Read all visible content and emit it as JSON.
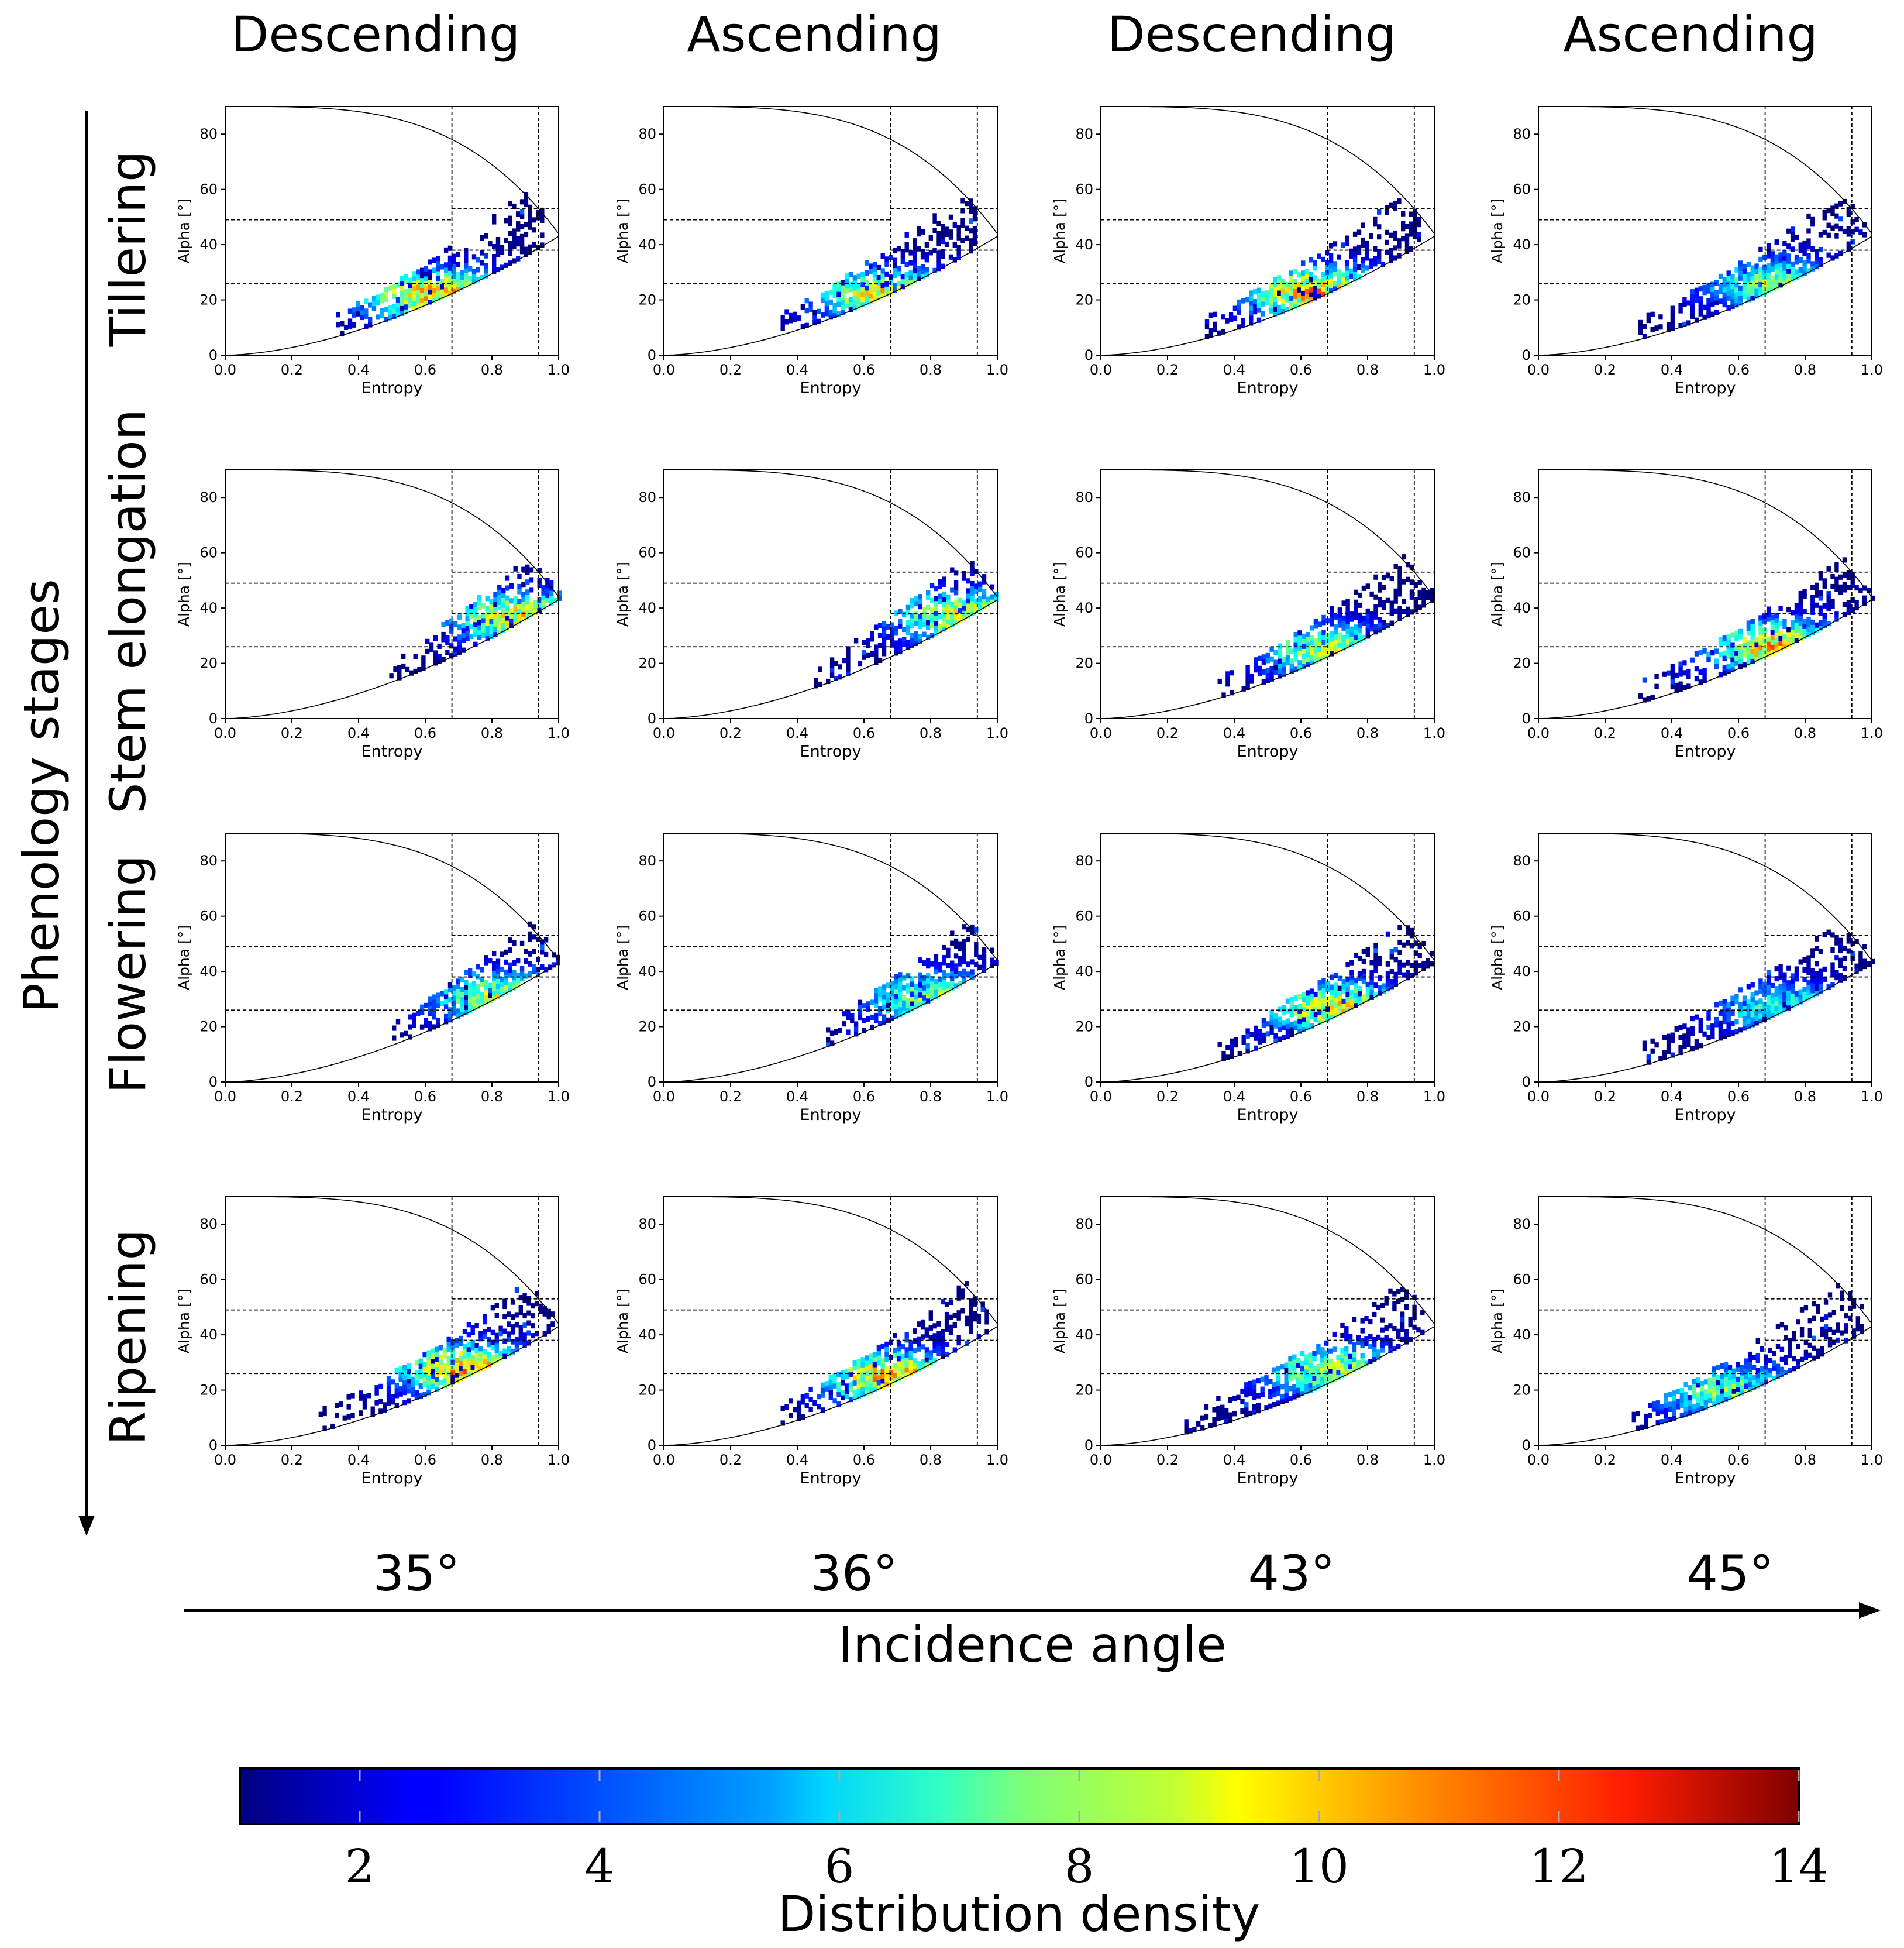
{
  "figure": {
    "column_headers": [
      "Descending",
      "Ascending",
      "Descending",
      "Ascending"
    ],
    "row_labels": [
      "Tillering",
      "Stem elongation",
      "Flowering",
      "Ripening"
    ],
    "row_axis_title": "Phenology stages",
    "incidence_angles": [
      "35°",
      "36°",
      "43°",
      "45°"
    ],
    "column_axis_title": "Incidence angle",
    "colorbar": {
      "label": "Distribution density",
      "min": 1,
      "max": 14,
      "ticks": [
        "2",
        "4",
        "6",
        "8",
        "10",
        "12",
        "14"
      ],
      "tick_values": [
        2,
        4,
        6,
        8,
        10,
        12,
        14
      ],
      "colormap": "jet"
    }
  },
  "chart_data": {
    "type": "heatmap",
    "subtype": "H/Alpha 2D histogram grid (4 x 4 panels)",
    "xlabel": "Entropy",
    "ylabel": "Alpha [°]",
    "xlim": [
      0,
      1
    ],
    "ylim": [
      0,
      90
    ],
    "x_ticks": [
      "0.0",
      "0.2",
      "0.4",
      "0.6",
      "0.8",
      "1.0"
    ],
    "y_ticks": [
      "0",
      "20",
      "40",
      "60",
      "80"
    ],
    "zone_boundaries": {
      "entropy": [
        0.68,
        0.94
      ],
      "alpha_low_entropy": [
        26,
        49
      ],
      "alpha_mid_entropy": [
        38,
        53
      ]
    },
    "feasible_curves": [
      "upper",
      "lower"
    ],
    "rows": [
      "Tillering",
      "Stem elongation",
      "Flowering",
      "Ripening"
    ],
    "columns": [
      "35° Descending",
      "36° Ascending",
      "43° Descending",
      "45° Ascending"
    ],
    "panels": [
      [
        {
          "h_range": [
            0.32,
            0.95
          ],
          "mode_entropy": 0.62,
          "mode_alpha": 21,
          "max_density": 12
        },
        {
          "h_range": [
            0.35,
            0.93
          ],
          "mode_entropy": 0.66,
          "mode_alpha": 21,
          "max_density": 11
        },
        {
          "h_range": [
            0.3,
            0.96
          ],
          "mode_entropy": 0.64,
          "mode_alpha": 22,
          "max_density": 12
        },
        {
          "h_range": [
            0.3,
            0.98
          ],
          "mode_entropy": 0.7,
          "mode_alpha": 25,
          "max_density": 9
        }
      ],
      [
        {
          "h_range": [
            0.48,
            1.0
          ],
          "mode_entropy": 0.88,
          "mode_alpha": 36,
          "max_density": 11
        },
        {
          "h_range": [
            0.45,
            1.0
          ],
          "mode_entropy": 0.9,
          "mode_alpha": 36,
          "max_density": 11
        },
        {
          "h_range": [
            0.35,
            0.99
          ],
          "mode_entropy": 0.68,
          "mode_alpha": 24,
          "max_density": 10
        },
        {
          "h_range": [
            0.3,
            1.0
          ],
          "mode_entropy": 0.72,
          "mode_alpha": 25,
          "max_density": 12
        }
      ],
      [
        {
          "h_range": [
            0.5,
            1.0
          ],
          "mode_entropy": 0.82,
          "mode_alpha": 30,
          "max_density": 10
        },
        {
          "h_range": [
            0.45,
            1.0
          ],
          "mode_entropy": 0.8,
          "mode_alpha": 30,
          "max_density": 9
        },
        {
          "h_range": [
            0.35,
            0.99
          ],
          "mode_entropy": 0.7,
          "mode_alpha": 26,
          "max_density": 11
        },
        {
          "h_range": [
            0.3,
            1.0
          ],
          "mode_entropy": 0.74,
          "mode_alpha": 26,
          "max_density": 8
        }
      ],
      [
        {
          "h_range": [
            0.28,
            0.98
          ],
          "mode_entropy": 0.72,
          "mode_alpha": 27,
          "max_density": 12
        },
        {
          "h_range": [
            0.35,
            0.97
          ],
          "mode_entropy": 0.68,
          "mode_alpha": 24,
          "max_density": 12
        },
        {
          "h_range": [
            0.25,
            0.97
          ],
          "mode_entropy": 0.7,
          "mode_alpha": 26,
          "max_density": 10
        },
        {
          "h_range": [
            0.28,
            0.97
          ],
          "mode_entropy": 0.56,
          "mode_alpha": 19,
          "max_density": 9
        }
      ]
    ]
  }
}
